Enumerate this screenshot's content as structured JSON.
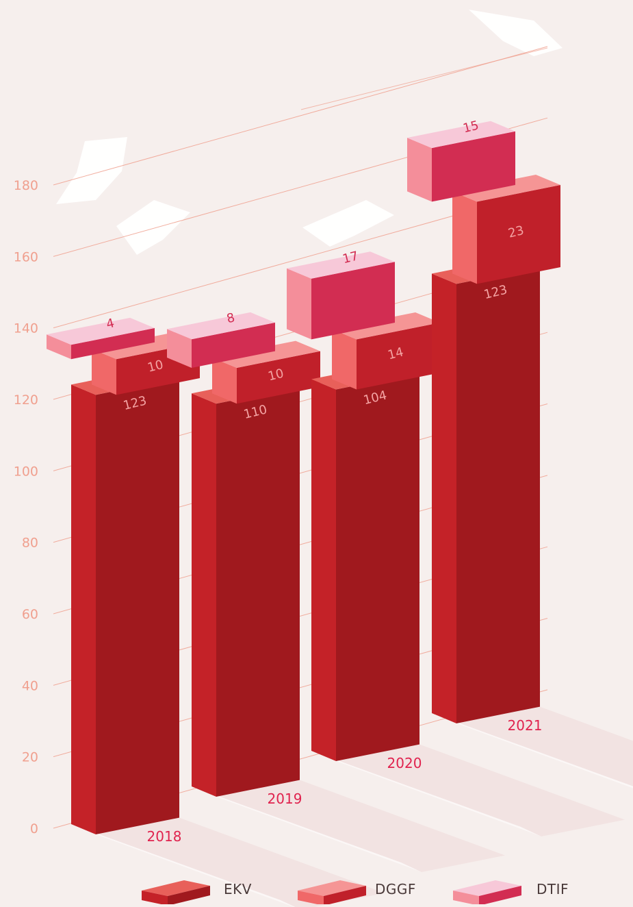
{
  "chart_data": {
    "type": "bar",
    "stacked": true,
    "style": "3d-isometric",
    "categories": [
      "2018",
      "2019",
      "2020",
      "2021"
    ],
    "series": [
      {
        "name": "EKV",
        "values": [
          123,
          110,
          104,
          123
        ]
      },
      {
        "name": "DGGF",
        "values": [
          10,
          10,
          14,
          23
        ]
      },
      {
        "name": "DTIF",
        "values": [
          4,
          8,
          17,
          15
        ]
      }
    ],
    "y_ticks": [
      "0",
      "20",
      "40",
      "60",
      "80",
      "100",
      "120",
      "140",
      "160",
      "180"
    ],
    "ylim": [
      0,
      180
    ],
    "grid": true,
    "legend_position": "bottom"
  },
  "colors": {
    "background": "#f6efed",
    "grid": "#f0a08f",
    "tick_label": "#f0a08f",
    "year_label": "#e0234e",
    "ekv_front": "#a0191e",
    "ekv_side": "#c42228",
    "ekv_top": "#e8605a",
    "dggf_front": "#c0202a",
    "dggf_side": "#f06868",
    "dggf_top": "#f59595",
    "dtif_front": "#d22d52",
    "dtif_side": "#f48e9a",
    "dtif_top": "#f7c8d8",
    "value_label": "#f4a3a3"
  }
}
